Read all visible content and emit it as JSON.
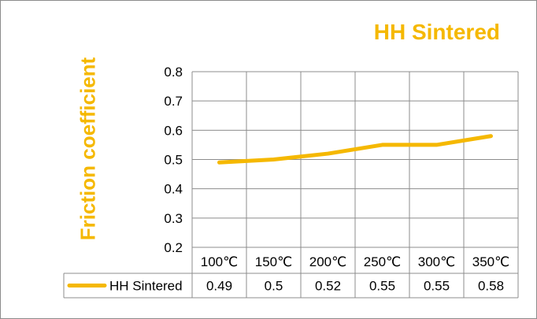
{
  "chart_data": {
    "type": "line",
    "title": "HH Sintered",
    "ylabel": "Friction coefficient",
    "xlabel": "",
    "categories": [
      "100℃",
      "150℃",
      "200℃",
      "250℃",
      "300℃",
      "350℃"
    ],
    "yticks": [
      "0.2",
      "0.3",
      "0.4",
      "0.5",
      "0.6",
      "0.7",
      "0.8"
    ],
    "ylim": [
      0.2,
      0.8
    ],
    "grid": true,
    "legend_placement": "data-table-left",
    "series": [
      {
        "name": "HH Sintered",
        "color": "#f5b800",
        "values": [
          0.49,
          0.5,
          0.52,
          0.55,
          0.55,
          0.58
        ],
        "value_labels": [
          "0.49",
          "0.5",
          "0.52",
          "0.55",
          "0.55",
          "0.58"
        ]
      }
    ]
  }
}
